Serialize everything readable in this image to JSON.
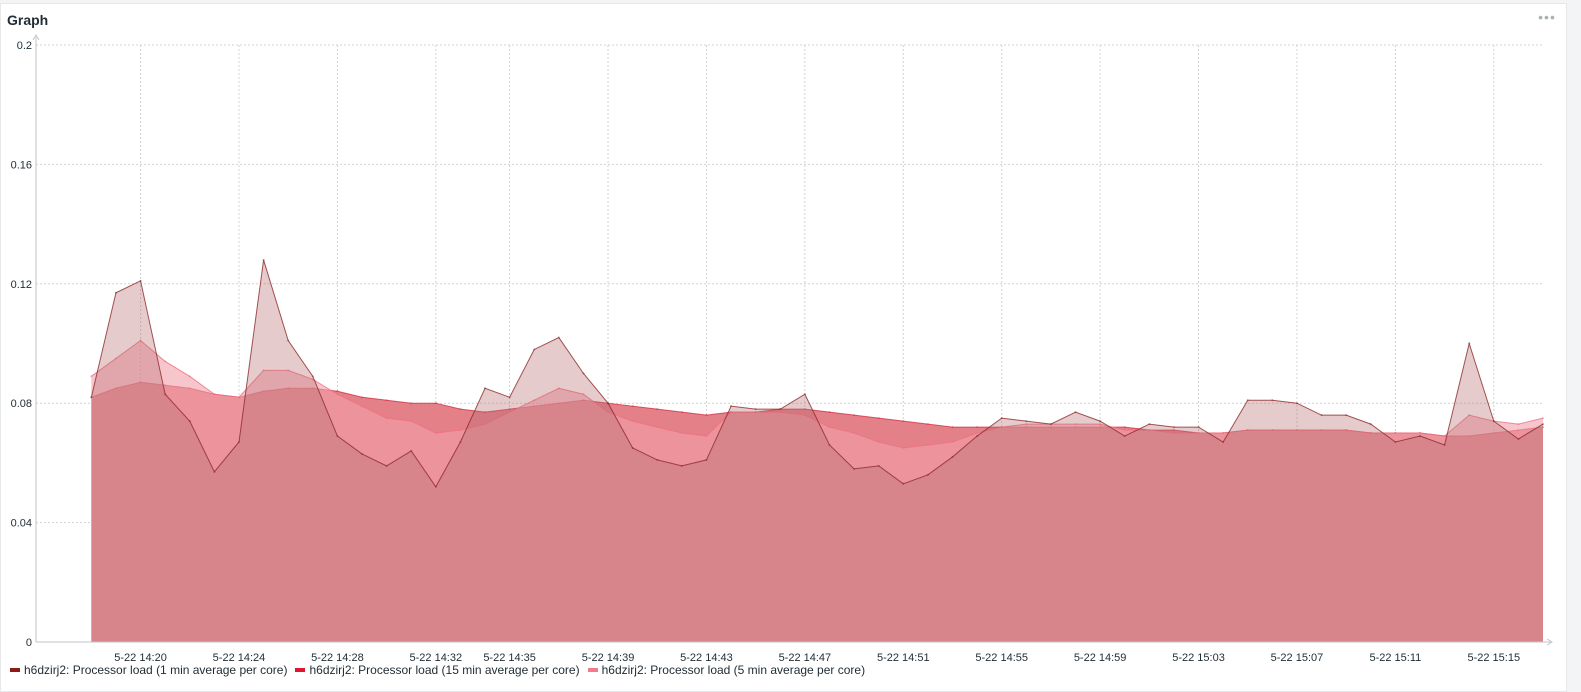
{
  "widget": {
    "title": "Graph",
    "menu_icon": "ellipsis-icon"
  },
  "chart_data": {
    "type": "area",
    "ylim": [
      0,
      0.2
    ],
    "yticks": [
      "0",
      "0.04",
      "0.08",
      "0.12",
      "0.16",
      "0.2"
    ],
    "xlim": [
      "5-22 14:15:45",
      "5-22 15:17:00"
    ],
    "xticks": [
      "5-22 14:20",
      "5-22 14:24",
      "5-22 14:28",
      "5-22 14:32",
      "5-22 14:35",
      "5-22 14:39",
      "5-22 14:43",
      "5-22 14:47",
      "5-22 14:51",
      "5-22 14:55",
      "5-22 14:59",
      "5-22 15:03",
      "5-22 15:07",
      "5-22 15:11",
      "5-22 15:15"
    ],
    "x": [
      "14:18",
      "14:19",
      "14:20",
      "14:21",
      "14:22",
      "14:23",
      "14:24",
      "14:25",
      "14:26",
      "14:27",
      "14:28",
      "14:29",
      "14:30",
      "14:31",
      "14:32",
      "14:33",
      "14:34",
      "14:35",
      "14:36",
      "14:37",
      "14:38",
      "14:39",
      "14:40",
      "14:41",
      "14:42",
      "14:43",
      "14:44",
      "14:45",
      "14:46",
      "14:47",
      "14:48",
      "14:49",
      "14:50",
      "14:51",
      "14:52",
      "14:53",
      "14:54",
      "14:55",
      "14:56",
      "14:57",
      "14:58",
      "14:59",
      "15:00",
      "15:01",
      "15:02",
      "15:03",
      "15:04",
      "15:05",
      "15:06",
      "15:07",
      "15:08",
      "15:09",
      "15:10",
      "15:11",
      "15:12",
      "15:13",
      "15:14",
      "15:15",
      "15:16",
      "15:17"
    ],
    "grid": true,
    "legend_position": "bottom",
    "series": [
      {
        "name": "h6dzirj2: Processor load (15 min average per core)",
        "color": "#d32f45",
        "values": [
          0.082,
          0.085,
          0.087,
          0.086,
          0.085,
          0.083,
          0.082,
          0.084,
          0.085,
          0.085,
          0.084,
          0.082,
          0.081,
          0.08,
          0.08,
          0.078,
          0.077,
          0.078,
          0.079,
          0.08,
          0.081,
          0.08,
          0.079,
          0.078,
          0.077,
          0.076,
          0.077,
          0.077,
          0.078,
          0.078,
          0.077,
          0.076,
          0.075,
          0.074,
          0.073,
          0.072,
          0.072,
          0.072,
          0.072,
          0.072,
          0.072,
          0.072,
          0.072,
          0.071,
          0.071,
          0.07,
          0.07,
          0.071,
          0.071,
          0.071,
          0.071,
          0.071,
          0.07,
          0.07,
          0.07,
          0.069,
          0.069,
          0.07,
          0.071,
          0.072
        ]
      },
      {
        "name": "h6dzirj2: Processor load (5 min average per core)",
        "color": "#f06f7f",
        "values": [
          0.089,
          0.095,
          0.101,
          0.094,
          0.089,
          0.083,
          0.082,
          0.091,
          0.091,
          0.088,
          0.083,
          0.079,
          0.075,
          0.074,
          0.07,
          0.071,
          0.073,
          0.077,
          0.081,
          0.085,
          0.083,
          0.077,
          0.074,
          0.072,
          0.07,
          0.069,
          0.077,
          0.077,
          0.077,
          0.076,
          0.072,
          0.07,
          0.067,
          0.065,
          0.066,
          0.067,
          0.07,
          0.072,
          0.073,
          0.073,
          0.073,
          0.073,
          0.071,
          0.071,
          0.07,
          0.07,
          0.07,
          0.071,
          0.071,
          0.071,
          0.071,
          0.071,
          0.07,
          0.07,
          0.07,
          0.069,
          0.076,
          0.074,
          0.073,
          0.075
        ]
      },
      {
        "name": "h6dzirj2: Processor load (1 min average per core)",
        "color": "#8c2a2a",
        "values": [
          0.082,
          0.117,
          0.121,
          0.083,
          0.074,
          0.057,
          0.067,
          0.128,
          0.101,
          0.089,
          0.069,
          0.063,
          0.059,
          0.064,
          0.052,
          0.067,
          0.085,
          0.082,
          0.098,
          0.102,
          0.09,
          0.08,
          0.065,
          0.061,
          0.059,
          0.061,
          0.079,
          0.078,
          0.078,
          0.083,
          0.066,
          0.058,
          0.059,
          0.053,
          0.056,
          0.062,
          0.069,
          0.075,
          0.074,
          0.073,
          0.077,
          0.074,
          0.069,
          0.073,
          0.072,
          0.072,
          0.067,
          0.081,
          0.081,
          0.08,
          0.076,
          0.076,
          0.073,
          0.067,
          0.069,
          0.066,
          0.1,
          0.074,
          0.068,
          0.073
        ]
      }
    ],
    "legend": [
      {
        "label": "h6dzirj2: Processor load (1 min average per core)",
        "color": "#8c1c13"
      },
      {
        "label": "h6dzirj2: Processor load (15 min average per core)",
        "color": "#e0162b"
      },
      {
        "label": "h6dzirj2: Processor load (5 min average per core)",
        "color": "#f27b8a"
      }
    ]
  }
}
